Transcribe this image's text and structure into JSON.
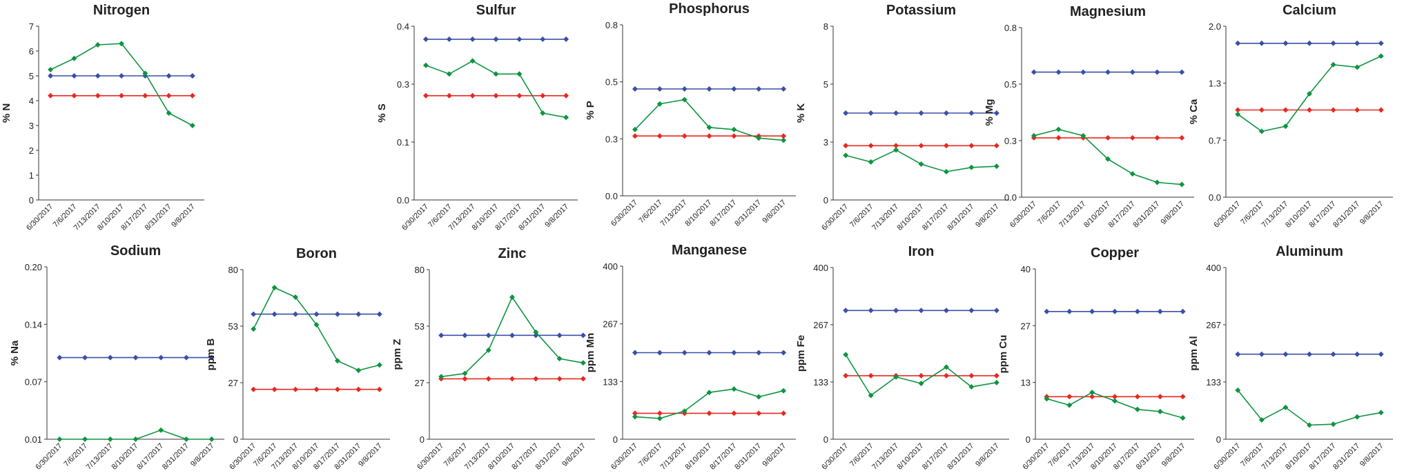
{
  "colors": {
    "blue": "#3a4fa6",
    "red": "#e8281e",
    "green": "#0e9440"
  },
  "chart_data": [
    {
      "type": "line",
      "title": "Nitrogen",
      "ylabel": "% N",
      "yticks": [
        "0",
        "1",
        "2",
        "3",
        "4",
        "5",
        "6",
        "7"
      ],
      "ylim": [
        0,
        7
      ],
      "categories": [
        "6/30/2017",
        "7/6/2017",
        "7/13/2017",
        "8/10/2017",
        "8/17/2017",
        "8/31/2017",
        "9/8/2017"
      ],
      "series": [
        {
          "color": "blue",
          "values": [
            5.0,
            5.0,
            5.0,
            5.0,
            5.0,
            5.0,
            5.0
          ]
        },
        {
          "color": "red",
          "values": [
            4.2,
            4.2,
            4.2,
            4.2,
            4.2,
            4.2,
            4.2
          ]
        },
        {
          "color": "green",
          "values": [
            5.25,
            5.7,
            6.25,
            6.3,
            5.1,
            3.5,
            3.0
          ]
        }
      ]
    },
    {
      "type": "line",
      "title": "Sulfur",
      "ylabel": "% S",
      "yticks": [
        "0.0",
        "0.1",
        "0.3",
        "0.4"
      ],
      "ylim": [
        0,
        0.4
      ],
      "categories": [
        "6/30/2017",
        "7/6/2017",
        "7/13/2017",
        "8/10/2017",
        "8/17/2017",
        "8/31/2017",
        "9/8/2017"
      ],
      "series": [
        {
          "color": "blue",
          "values": [
            0.37,
            0.37,
            0.37,
            0.37,
            0.37,
            0.37,
            0.37
          ]
        },
        {
          "color": "red",
          "values": [
            0.24,
            0.24,
            0.24,
            0.24,
            0.24,
            0.24,
            0.24
          ]
        },
        {
          "color": "green",
          "values": [
            0.31,
            0.29,
            0.32,
            0.29,
            0.29,
            0.2,
            0.19
          ]
        }
      ]
    },
    {
      "type": "line",
      "title": "Phosphorus",
      "ylabel": "% P",
      "yticks": [
        "0.0",
        "0.3",
        "0.5",
        "0.8"
      ],
      "ylim": [
        0,
        0.8
      ],
      "categories": [
        "6/30/2017",
        "7/6/2017",
        "7/13/2017",
        "8/10/2017",
        "8/17/2017",
        "8/31/2017",
        "9/8/2017"
      ],
      "series": [
        {
          "color": "blue",
          "values": [
            0.5,
            0.5,
            0.5,
            0.5,
            0.5,
            0.5,
            0.5
          ]
        },
        {
          "color": "red",
          "values": [
            0.28,
            0.28,
            0.28,
            0.28,
            0.28,
            0.28,
            0.28
          ]
        },
        {
          "color": "green",
          "values": [
            0.31,
            0.43,
            0.45,
            0.32,
            0.31,
            0.27,
            0.26
          ]
        }
      ]
    },
    {
      "type": "line",
      "title": "Potassium",
      "ylabel": "% K",
      "yticks": [
        "0",
        "3",
        "5",
        "8"
      ],
      "ylim": [
        0,
        8
      ],
      "categories": [
        "6/30/2017",
        "7/6/2017",
        "7/13/2017",
        "8/10/2017",
        "8/17/2017",
        "8/31/2017",
        "9/8/2017"
      ],
      "series": [
        {
          "color": "blue",
          "values": [
            4.0,
            4.0,
            4.0,
            4.0,
            4.0,
            4.0,
            4.0
          ]
        },
        {
          "color": "red",
          "values": [
            2.5,
            2.5,
            2.5,
            2.5,
            2.5,
            2.5,
            2.5
          ]
        },
        {
          "color": "green",
          "values": [
            2.05,
            1.75,
            2.3,
            1.65,
            1.3,
            1.5,
            1.55
          ]
        }
      ]
    },
    {
      "type": "line",
      "title": "Magnesium",
      "ylabel": "% Mg",
      "yticks": [
        "0.0",
        "0.3",
        "0.5",
        "0.8"
      ],
      "ylim": [
        0,
        0.8
      ],
      "categories": [
        "6/30/2017",
        "7/6/2017",
        "7/13/2017",
        "8/10/2017",
        "8/17/2017",
        "8/31/2017",
        "9/8/2017"
      ],
      "series": [
        {
          "color": "blue",
          "values": [
            0.59,
            0.59,
            0.59,
            0.59,
            0.59,
            0.59,
            0.59
          ]
        },
        {
          "color": "red",
          "values": [
            0.28,
            0.28,
            0.28,
            0.28,
            0.28,
            0.28,
            0.28
          ]
        },
        {
          "color": "green",
          "values": [
            0.29,
            0.32,
            0.29,
            0.18,
            0.11,
            0.07,
            0.06
          ]
        }
      ]
    },
    {
      "type": "line",
      "title": "Calcium",
      "ylabel": "% Ca",
      "yticks": [
        "0.0",
        "0.7",
        "1.3",
        "2.0"
      ],
      "ylim": [
        0,
        2.0
      ],
      "categories": [
        "6/30/2017",
        "7/6/2017",
        "7/13/2017",
        "8/10/2017",
        "8/17/2017",
        "8/31/2017",
        "9/8/2017"
      ],
      "series": [
        {
          "color": "blue",
          "values": [
            1.8,
            1.8,
            1.8,
            1.8,
            1.8,
            1.8,
            1.8
          ]
        },
        {
          "color": "red",
          "values": [
            1.02,
            1.02,
            1.02,
            1.02,
            1.02,
            1.02,
            1.02
          ]
        },
        {
          "color": "green",
          "values": [
            0.97,
            0.77,
            0.83,
            1.21,
            1.55,
            1.52,
            1.65
          ]
        }
      ]
    },
    {
      "type": "line",
      "title": "Sodium",
      "ylabel": "% Na",
      "yticks": [
        "0.01",
        "0.07",
        "0.14",
        "0.20"
      ],
      "ylim": [
        0.01,
        0.2
      ],
      "categories": [
        "6/30/2017",
        "7/6/2017",
        "7/13/2017",
        "8/10/2017",
        "8/17/2017",
        "8/31/2017",
        "9/8/2017"
      ],
      "series": [
        {
          "color": "blue",
          "values": [
            0.1,
            0.1,
            0.1,
            0.1,
            0.1,
            0.1,
            0.1
          ]
        },
        {
          "color": "green",
          "values": [
            0.01,
            0.01,
            0.01,
            0.01,
            0.02,
            0.01,
            0.01
          ]
        }
      ]
    },
    {
      "type": "line",
      "title": "Boron",
      "ylabel": "ppm B",
      "yticks": [
        "0",
        "27",
        "53",
        "80"
      ],
      "ylim": [
        0,
        80
      ],
      "categories": [
        "6/30/2017",
        "7/6/2017",
        "7/13/2017",
        "8/10/2017",
        "8/17/2017",
        "8/31/2017",
        "9/8/2017"
      ],
      "series": [
        {
          "color": "blue",
          "values": [
            59,
            59,
            59,
            59,
            59,
            59,
            59
          ]
        },
        {
          "color": "red",
          "values": [
            23.5,
            23.5,
            23.5,
            23.5,
            23.5,
            23.5,
            23.5
          ]
        },
        {
          "color": "green",
          "values": [
            52,
            71.5,
            67,
            54,
            37,
            32.5,
            35
          ]
        }
      ]
    },
    {
      "type": "line",
      "title": "Zinc",
      "ylabel": "ppm Z",
      "yticks": [
        "0",
        "27",
        "53",
        "80"
      ],
      "ylim": [
        0,
        80
      ],
      "categories": [
        "6/30/2017",
        "7/6/2017",
        "7/13/2017",
        "8/10/2017",
        "8/17/2017",
        "8/31/2017",
        "9/8/2017"
      ],
      "series": [
        {
          "color": "blue",
          "values": [
            49,
            49,
            49,
            49,
            49,
            49,
            49
          ]
        },
        {
          "color": "red",
          "values": [
            28.5,
            28.5,
            28.5,
            28.5,
            28.5,
            28.5,
            28.5
          ]
        },
        {
          "color": "green",
          "values": [
            29.5,
            31,
            42,
            67,
            50.5,
            38,
            36
          ]
        }
      ]
    },
    {
      "type": "line",
      "title": "Manganese",
      "ylabel": "ppm Mn",
      "yticks": [
        "0",
        "133",
        "267",
        "400"
      ],
      "ylim": [
        0,
        400
      ],
      "categories": [
        "6/30/2017",
        "7/6/2017",
        "7/13/2017",
        "8/10/2017",
        "8/17/2017",
        "8/31/2017",
        "9/8/2017"
      ],
      "series": [
        {
          "color": "blue",
          "values": [
            200,
            200,
            200,
            200,
            200,
            200,
            200
          ]
        },
        {
          "color": "red",
          "values": [
            60,
            60,
            60,
            60,
            60,
            60,
            60
          ]
        },
        {
          "color": "green",
          "values": [
            52,
            48,
            65,
            108,
            116,
            98,
            112
          ]
        }
      ]
    },
    {
      "type": "line",
      "title": "Iron",
      "ylabel": "ppm Fe",
      "yticks": [
        "0",
        "133",
        "267",
        "400"
      ],
      "ylim": [
        0,
        400
      ],
      "categories": [
        "6/30/2017",
        "7/6/2017",
        "7/13/2017",
        "8/10/2017",
        "8/17/2017",
        "8/31/2017",
        "9/8/2017"
      ],
      "series": [
        {
          "color": "blue",
          "values": [
            300,
            300,
            300,
            300,
            300,
            300,
            300
          ]
        },
        {
          "color": "red",
          "values": [
            148,
            148,
            148,
            148,
            148,
            148,
            148
          ]
        },
        {
          "color": "green",
          "values": [
            197,
            102,
            145,
            130,
            168,
            122,
            132
          ]
        }
      ]
    },
    {
      "type": "line",
      "title": "Copper",
      "ylabel": "ppm Cu",
      "yticks": [
        "0",
        "13",
        "27",
        "40"
      ],
      "ylim": [
        0,
        40
      ],
      "categories": [
        "6/30/2017",
        "7/6/2017",
        "7/13/2017",
        "8/10/2017",
        "8/17/2017",
        "8/31/2017",
        "9/8/2017"
      ],
      "series": [
        {
          "color": "blue",
          "values": [
            30,
            30,
            30,
            30,
            30,
            30,
            30
          ]
        },
        {
          "color": "red",
          "values": [
            10,
            10,
            10,
            10,
            10,
            10,
            10
          ]
        },
        {
          "color": "green",
          "values": [
            9.5,
            8,
            11,
            9,
            7,
            6.5,
            5
          ]
        }
      ]
    },
    {
      "type": "line",
      "title": "Aluminum",
      "ylabel": "ppm Al",
      "yticks": [
        "0",
        "133",
        "267",
        "400"
      ],
      "ylim": [
        0,
        400
      ],
      "categories": [
        "6/30/2017",
        "7/6/2017",
        "7/13/2017",
        "8/10/2017",
        "8/17/2017",
        "8/31/2017",
        "9/8/2017"
      ],
      "series": [
        {
          "color": "blue",
          "values": [
            198,
            198,
            198,
            198,
            198,
            198,
            198
          ]
        },
        {
          "color": "green",
          "values": [
            114,
            45,
            74,
            33,
            35,
            52,
            62
          ]
        }
      ]
    }
  ]
}
